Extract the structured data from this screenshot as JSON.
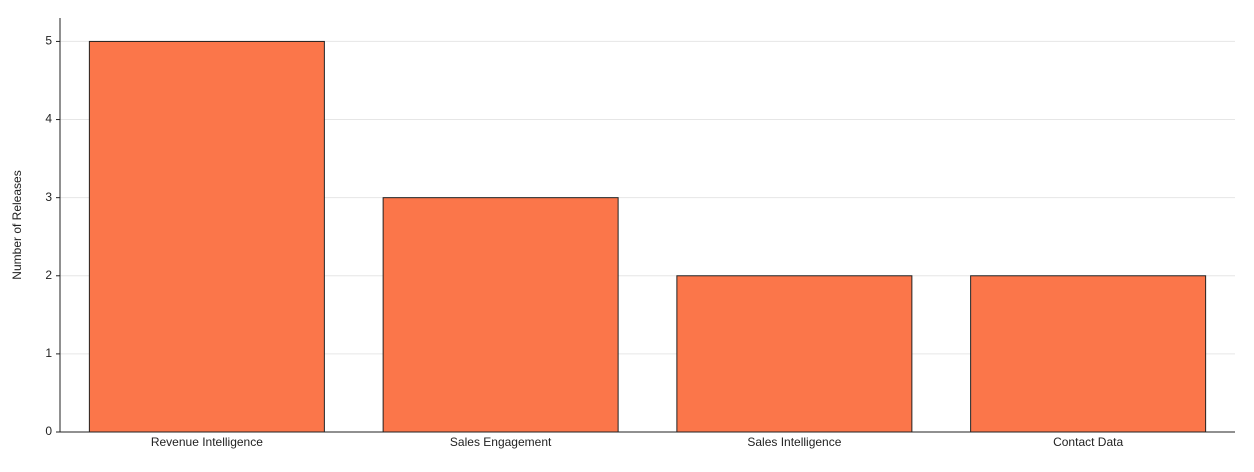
{
  "chart_data": {
    "type": "bar",
    "y_label": "Number of Releases",
    "categories": [
      "Revenue Intelligence",
      "Sales Engagement",
      "Sales Intelligence",
      "Contact Data"
    ],
    "values": [
      5,
      3,
      2,
      2
    ],
    "color": "#fb764a",
    "ylim": [
      0,
      5.3
    ],
    "yticks": [
      0,
      1,
      2,
      3,
      4,
      5
    ],
    "grid": true
  }
}
